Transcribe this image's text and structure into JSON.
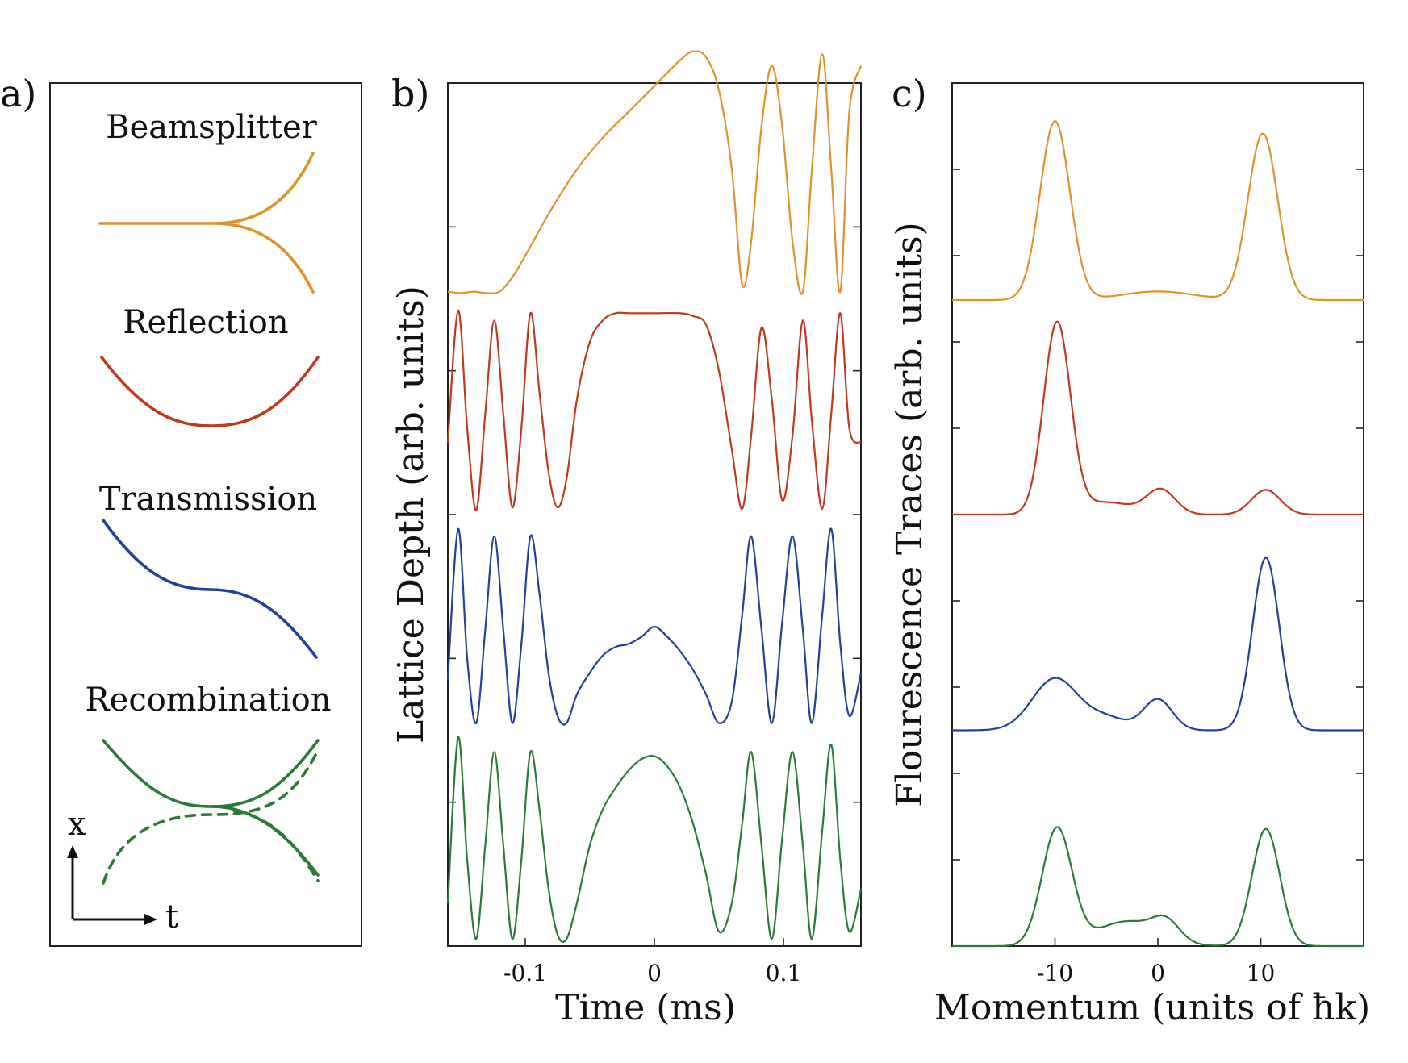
{
  "colors": {
    "beamsplitter": "#e0922c",
    "reflection": "#c0391f",
    "transmission": "#23419a",
    "recombination": "#2b7a37",
    "axis": "#222222"
  },
  "panel_a": {
    "letter": "a)",
    "labels": [
      "Beamsplitter",
      "Reflection",
      "Transmission",
      "Recombination"
    ],
    "axis_x": "x",
    "axis_t": "t"
  },
  "chart_data": [
    {
      "type": "line",
      "panel": "b)",
      "xlabel": "Time (ms)",
      "ylabel": "Lattice Depth (arb. units)",
      "xlim": [
        -0.16,
        0.16
      ],
      "xticks": [
        -0.1,
        0,
        0.1
      ],
      "xtick_labels": [
        "-0.1",
        "0",
        "0.1"
      ],
      "ylim": [
        0,
        6
      ],
      "series": [
        {
          "name": "Beamsplitter",
          "color": "#e0922c",
          "offset": 4.5,
          "x": [
            -0.16,
            -0.15,
            -0.14,
            -0.13,
            -0.12,
            -0.11,
            -0.1,
            -0.08,
            -0.06,
            -0.04,
            -0.02,
            0.0,
            0.02,
            0.03,
            0.04,
            0.05,
            0.06,
            0.068,
            0.075,
            0.083,
            0.091,
            0.099,
            0.107,
            0.115,
            0.122,
            0.13,
            0.137,
            0.144,
            0.151,
            0.16
          ],
          "y": [
            0.05,
            0.04,
            0.05,
            0.04,
            0.05,
            0.15,
            0.3,
            0.62,
            0.9,
            1.12,
            1.3,
            1.48,
            1.66,
            1.72,
            1.68,
            1.45,
            0.9,
            0.1,
            0.4,
            1.2,
            1.62,
            1.2,
            0.4,
            0.05,
            0.9,
            1.7,
            0.9,
            0.05,
            1.3,
            1.62
          ]
        },
        {
          "name": "Reflection",
          "color": "#c0391f",
          "offset": 3.0,
          "x": [
            -0.16,
            -0.152,
            -0.145,
            -0.138,
            -0.131,
            -0.124,
            -0.117,
            -0.11,
            -0.103,
            -0.096,
            -0.089,
            -0.082,
            -0.075,
            -0.068,
            -0.06,
            -0.05,
            -0.04,
            -0.03,
            -0.02,
            0.0,
            0.02,
            0.03,
            0.04,
            0.05,
            0.06,
            0.068,
            0.075,
            0.083,
            0.091,
            0.099,
            0.107,
            0.115,
            0.122,
            0.13,
            0.137,
            0.144,
            0.151,
            0.16
          ],
          "y": [
            0.5,
            1.42,
            0.6,
            0.03,
            0.7,
            1.35,
            0.7,
            0.05,
            0.6,
            1.4,
            0.85,
            0.3,
            0.05,
            0.25,
            0.8,
            1.2,
            1.35,
            1.4,
            1.4,
            1.4,
            1.4,
            1.38,
            1.32,
            1.0,
            0.45,
            0.04,
            0.55,
            1.3,
            0.8,
            0.1,
            0.55,
            1.35,
            0.65,
            0.04,
            0.7,
            1.4,
            0.6,
            0.5
          ]
        },
        {
          "name": "Transmission",
          "color": "#23419a",
          "offset": 1.5,
          "x": [
            -0.16,
            -0.152,
            -0.145,
            -0.138,
            -0.131,
            -0.124,
            -0.117,
            -0.11,
            -0.103,
            -0.096,
            -0.089,
            -0.082,
            -0.075,
            -0.068,
            -0.06,
            -0.05,
            -0.04,
            -0.03,
            -0.02,
            -0.01,
            0.0,
            0.01,
            0.02,
            0.03,
            0.04,
            0.05,
            0.06,
            0.068,
            0.075,
            0.083,
            0.091,
            0.099,
            0.107,
            0.115,
            0.122,
            0.13,
            0.137,
            0.144,
            0.151,
            0.16
          ],
          "y": [
            0.35,
            1.4,
            0.5,
            0.05,
            0.7,
            1.35,
            0.7,
            0.05,
            0.6,
            1.35,
            0.95,
            0.4,
            0.1,
            0.05,
            0.25,
            0.4,
            0.52,
            0.58,
            0.6,
            0.65,
            0.72,
            0.65,
            0.55,
            0.42,
            0.25,
            0.05,
            0.2,
            0.8,
            1.35,
            0.7,
            0.05,
            0.75,
            1.35,
            0.7,
            0.05,
            0.8,
            1.4,
            0.6,
            0.1,
            0.4
          ]
        },
        {
          "name": "Recombination",
          "color": "#2b7a37",
          "offset": 0.0,
          "x": [
            -0.16,
            -0.152,
            -0.145,
            -0.138,
            -0.131,
            -0.124,
            -0.117,
            -0.11,
            -0.103,
            -0.096,
            -0.089,
            -0.082,
            -0.075,
            -0.068,
            -0.06,
            -0.05,
            -0.04,
            -0.03,
            -0.02,
            -0.01,
            0.0,
            0.01,
            0.02,
            0.03,
            0.04,
            0.05,
            0.06,
            0.068,
            0.075,
            0.083,
            0.091,
            0.099,
            0.107,
            0.115,
            0.122,
            0.13,
            0.137,
            0.144,
            0.151,
            0.16
          ],
          "y": [
            0.3,
            1.45,
            0.6,
            0.05,
            0.7,
            1.35,
            0.7,
            0.05,
            0.6,
            1.35,
            0.95,
            0.4,
            0.08,
            0.05,
            0.3,
            0.7,
            0.95,
            1.1,
            1.22,
            1.3,
            1.32,
            1.25,
            1.1,
            0.85,
            0.5,
            0.1,
            0.3,
            0.85,
            1.35,
            0.7,
            0.05,
            0.75,
            1.35,
            0.7,
            0.05,
            0.8,
            1.4,
            0.6,
            0.1,
            0.4
          ]
        }
      ]
    },
    {
      "type": "line",
      "panel": "c)",
      "xlabel": "Momentum (units of ħk)",
      "ylabel": "Flourescence Traces (arb. units)",
      "xlim": [
        -20,
        20
      ],
      "xticks": [
        -10,
        0,
        10
      ],
      "xtick_labels": [
        "-10",
        "0",
        "10"
      ],
      "ylim": [
        0,
        7
      ],
      "series": [
        {
          "name": "Beamsplitter",
          "color": "#e0922c",
          "offset": 5.24,
          "peaks": [
            {
              "center": -10,
              "height": 1.45,
              "width": 1.45
            },
            {
              "center": 0,
              "height": 0.07,
              "width": 3.5
            },
            {
              "center": 10.2,
              "height": 1.35,
              "width": 1.45
            }
          ]
        },
        {
          "name": "Reflection",
          "color": "#c0391f",
          "offset": 3.5,
          "peaks": [
            {
              "center": -9.8,
              "height": 1.55,
              "width": 1.3
            },
            {
              "center": -5,
              "height": 0.1,
              "width": 2.5
            },
            {
              "center": 0.3,
              "height": 0.2,
              "width": 1.4
            },
            {
              "center": 10.5,
              "height": 0.2,
              "width": 1.4
            }
          ]
        },
        {
          "name": "Transmission",
          "color": "#23419a",
          "offset": 1.75,
          "peaks": [
            {
              "center": -10,
              "height": 0.42,
              "width": 2.2
            },
            {
              "center": -5,
              "height": 0.1,
              "width": 2.0
            },
            {
              "center": 0,
              "height": 0.25,
              "width": 1.4
            },
            {
              "center": 10.5,
              "height": 1.4,
              "width": 1.3
            }
          ]
        },
        {
          "name": "Recombination",
          "color": "#2b7a37",
          "offset": 0.0,
          "peaks": [
            {
              "center": -9.8,
              "height": 0.95,
              "width": 1.45
            },
            {
              "center": -3,
              "height": 0.2,
              "width": 3.0
            },
            {
              "center": 0.8,
              "height": 0.15,
              "width": 1.3
            },
            {
              "center": 10.5,
              "height": 0.95,
              "width": 1.35
            }
          ]
        }
      ]
    }
  ]
}
